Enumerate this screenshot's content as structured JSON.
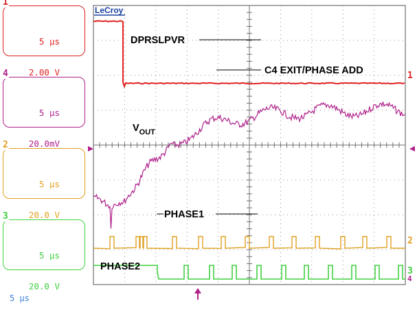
{
  "brand": "LeCroy",
  "timebase_label": "5 μs",
  "channels": [
    {
      "number": "1",
      "time_div": "5 μs",
      "volt_div": "2.00 V",
      "color": "#e02020"
    },
    {
      "number": "4",
      "time_div": "5 μs",
      "volt_div": "20.0mV",
      "color": "#b0208a"
    },
    {
      "number": "2",
      "time_div": "5 μs",
      "volt_div": "20.0 V",
      "color": "#e0a020"
    },
    {
      "number": "3",
      "time_div": "5 μs",
      "volt_div": "20.0 V",
      "color": "#40d040"
    }
  ],
  "annotations": {
    "dprslpvr": "DPRSLPVR",
    "c4_exit": "C4 EXIT/PHASE ADD",
    "vout": "V",
    "vout_sub": "OUT",
    "phase1": "PHASE1",
    "phase2": "PHASE2"
  },
  "right_markers": [
    "1",
    "2",
    "3",
    "4"
  ],
  "colors": {
    "grid": "#707070",
    "ch1": "#e02020",
    "ch4": "#b0208a",
    "ch2": "#e0a020",
    "ch3": "#40d040",
    "trigger": "#b0208a"
  }
}
